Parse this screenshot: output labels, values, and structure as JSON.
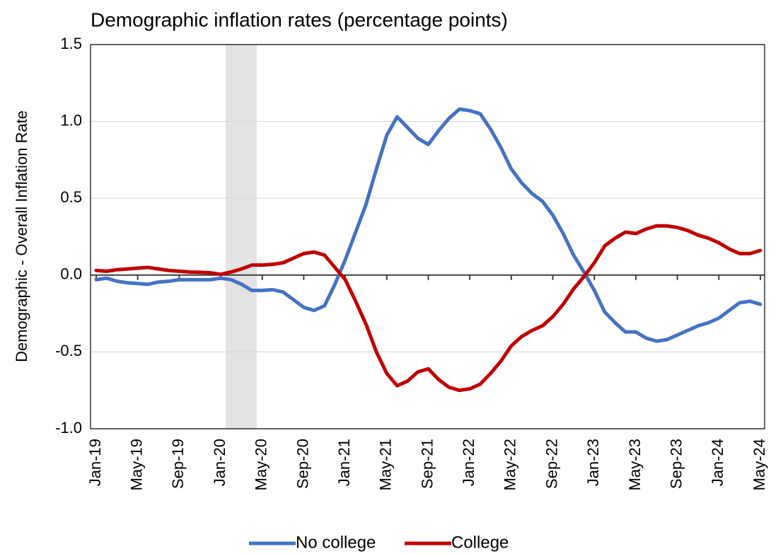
{
  "chart_data": {
    "type": "line",
    "title": "Demographic inflation rates (percentage points)",
    "y_label": "Demographic - Overall Inflation Rate",
    "categories": [
      "Jan-19",
      null,
      null,
      null,
      "May-19",
      null,
      null,
      null,
      "Sep-19",
      null,
      null,
      null,
      "Jan-20",
      null,
      null,
      null,
      "May-20",
      null,
      null,
      null,
      "Sep-20",
      null,
      null,
      null,
      "Jan-21",
      null,
      null,
      null,
      "May-21",
      null,
      null,
      null,
      "Sep-21",
      null,
      null,
      null,
      "Jan-22",
      null,
      null,
      null,
      "May-22",
      null,
      null,
      null,
      "Sep-22",
      null,
      null,
      null,
      "Jan-23",
      null,
      null,
      null,
      "May-23",
      null,
      null,
      null,
      "Sep-23",
      null,
      null,
      null,
      "Jan-24",
      null,
      null,
      null,
      "May-24"
    ],
    "series": [
      {
        "name": "No college",
        "color": "#4472c4",
        "values": [
          -0.03,
          -0.02,
          -0.04,
          -0.05,
          -0.055,
          -0.06,
          -0.045,
          -0.04,
          -0.03,
          -0.03,
          -0.03,
          -0.03,
          -0.02,
          -0.03,
          -0.06,
          -0.1,
          -0.1,
          -0.095,
          -0.11,
          -0.16,
          -0.21,
          -0.23,
          -0.2,
          -0.06,
          0.1,
          0.28,
          0.46,
          0.69,
          0.91,
          1.03,
          0.96,
          0.89,
          0.85,
          0.94,
          1.02,
          1.08,
          1.07,
          1.05,
          0.95,
          0.83,
          0.69,
          0.6,
          0.53,
          0.48,
          0.39,
          0.27,
          0.13,
          0.02,
          -0.1,
          -0.24,
          -0.31,
          -0.37,
          -0.37,
          -0.41,
          -0.43,
          -0.42,
          -0.39,
          -0.36,
          -0.33,
          -0.31,
          -0.28,
          -0.23,
          -0.18,
          -0.17,
          -0.19
        ]
      },
      {
        "name": "College",
        "color": "#c00000",
        "values": [
          0.03,
          0.025,
          0.035,
          0.04,
          0.045,
          0.05,
          0.04,
          0.03,
          0.025,
          0.02,
          0.018,
          0.015,
          0.005,
          0.02,
          0.04,
          0.065,
          0.065,
          0.07,
          0.08,
          0.11,
          0.14,
          0.15,
          0.13,
          0.05,
          -0.03,
          -0.17,
          -0.32,
          -0.5,
          -0.64,
          -0.72,
          -0.69,
          -0.63,
          -0.61,
          -0.68,
          -0.73,
          -0.75,
          -0.74,
          -0.71,
          -0.64,
          -0.56,
          -0.46,
          -0.4,
          -0.36,
          -0.33,
          -0.27,
          -0.19,
          -0.09,
          -0.01,
          0.08,
          0.19,
          0.24,
          0.28,
          0.27,
          0.3,
          0.32,
          0.32,
          0.31,
          0.29,
          0.26,
          0.24,
          0.21,
          0.17,
          0.14,
          0.14,
          0.16
        ]
      }
    ],
    "ylim": [
      -1,
      1.5
    ],
    "yticks": [
      {
        "value": -1,
        "label": "-1.0"
      },
      -0.5,
      {
        "value": 0,
        "label": "0.0"
      },
      0.5,
      {
        "value": 1,
        "label": "1.0"
      },
      1.5
    ],
    "grid": true,
    "legend": "bottom"
  }
}
